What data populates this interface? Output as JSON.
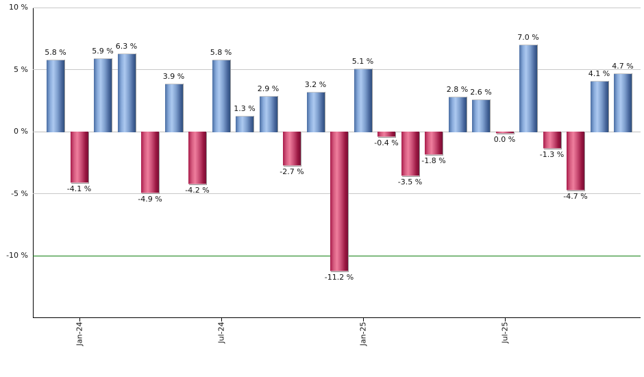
{
  "chart_data": {
    "type": "bar",
    "title": "",
    "xlabel": "",
    "ylabel": "",
    "unit": "%",
    "values": [
      5.8,
      -4.1,
      5.9,
      6.3,
      -4.9,
      3.9,
      -4.2,
      5.8,
      1.3,
      2.9,
      -2.7,
      3.2,
      -11.2,
      5.1,
      -0.4,
      -3.5,
      -1.8,
      2.8,
      2.6,
      0.0,
      7.0,
      -1.3,
      -4.7,
      4.1,
      4.7
    ],
    "bar_labels": [
      "5.8 %",
      "-4.1 %",
      "5.9 %",
      "6.3 %",
      "-4.9 %",
      "3.9 %",
      "-4.2 %",
      "5.8 %",
      "1.3 %",
      "2.9 %",
      "-2.7 %",
      "3.2 %",
      "-11.2 %",
      "5.1 %",
      "-0.4 %",
      "-3.5 %",
      "-1.8 %",
      "2.8 %",
      "2.6 %",
      "0.0 %",
      "7.0 %",
      "-1.3 %",
      "-4.7 %",
      "4.1 %",
      "4.7 %"
    ],
    "y_ticks": [
      {
        "value": 10,
        "label": "10 %"
      },
      {
        "value": 5,
        "label": "5 %"
      },
      {
        "value": 0,
        "label": "0 %"
      },
      {
        "value": -5,
        "label": "-5 %"
      },
      {
        "value": -10,
        "label": "-10 %"
      }
    ],
    "x_ticks": [
      {
        "bar_index": 1,
        "label": "Jan-24"
      },
      {
        "bar_index": 7,
        "label": "Jul-24"
      },
      {
        "bar_index": 13,
        "label": "Jan-25"
      },
      {
        "bar_index": 19,
        "label": "Jul-25"
      }
    ],
    "ylim": [
      -15,
      10
    ],
    "grid": true,
    "legend": "none",
    "threshold_line": {
      "value": -10,
      "color": "#0e7d0e"
    },
    "colors": {
      "positive_light": "#adc9f0",
      "positive_dark": "#2e4f7e",
      "negative_light": "#ef7e9d",
      "negative_dark": "#771036",
      "gridline": "#c8c8c8",
      "zero_line": "#bdbdbd",
      "axis": "#000000",
      "label_text": "#111111"
    }
  }
}
